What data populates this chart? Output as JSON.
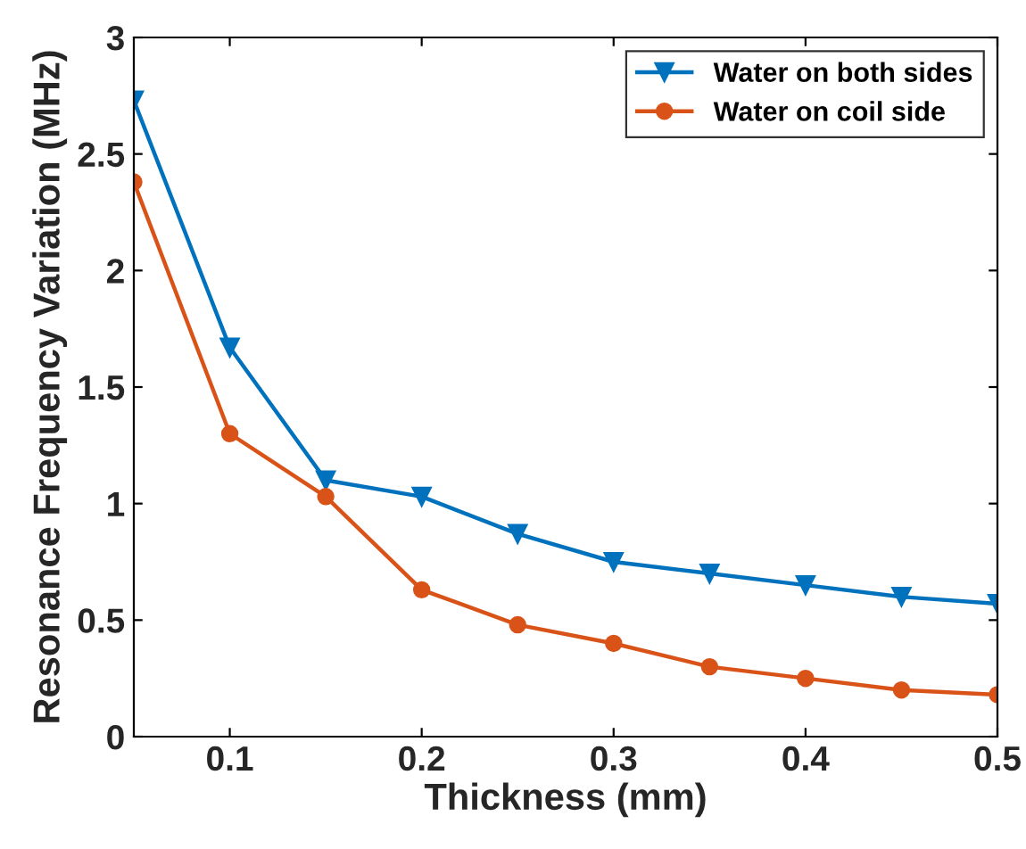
{
  "chart_data": {
    "type": "line",
    "xlabel": "Thickness (mm)",
    "ylabel": "Resonance Frequency Variation (MHz)",
    "x": [
      0.05,
      0.1,
      0.15,
      0.2,
      0.25,
      0.3,
      0.35,
      0.4,
      0.45,
      0.5
    ],
    "series": [
      {
        "name": "Water on both sides",
        "color": "#0072bd",
        "marker": "triangle",
        "values": [
          2.73,
          1.67,
          1.1,
          1.03,
          0.87,
          0.75,
          0.7,
          0.65,
          0.6,
          0.57
        ]
      },
      {
        "name": "Water on coil side",
        "color": "#d95319",
        "marker": "circle",
        "values": [
          2.38,
          1.3,
          1.03,
          0.63,
          0.48,
          0.4,
          0.3,
          0.25,
          0.2,
          0.18
        ]
      }
    ],
    "xlim": [
      0.05,
      0.5
    ],
    "xticks": [
      0.1,
      0.2,
      0.3,
      0.4,
      0.5
    ],
    "ylim": [
      0,
      3
    ],
    "yticks": [
      0,
      0.5,
      1,
      1.5,
      2,
      2.5,
      3
    ],
    "grid": false,
    "legend": "top right",
    "line_style": "solid"
  }
}
